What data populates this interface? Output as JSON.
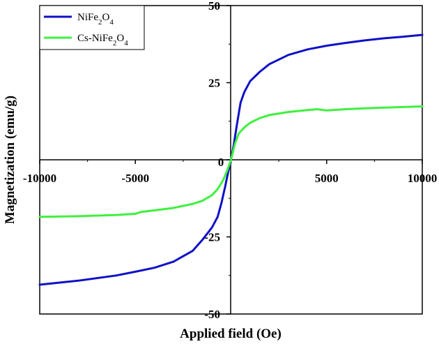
{
  "chart_data": {
    "type": "line",
    "xlabel": "Applied field (Oe)",
    "ylabel": "Magnetization (emu/g)",
    "xlim": [
      -10000,
      10000
    ],
    "ylim": [
      -50,
      50
    ],
    "x_ticks": [
      -10000,
      -5000,
      0,
      5000,
      10000
    ],
    "y_ticks": [
      -50,
      -25,
      0,
      25,
      50
    ],
    "x_tick_labels": [
      "-10000",
      "-5000",
      "0",
      "5000",
      "10000"
    ],
    "y_tick_labels": [
      "-50",
      "-25",
      "0",
      "25",
      "50"
    ],
    "grid": false,
    "legend_position": "top-left",
    "series": [
      {
        "name": "NiFe2O4",
        "name_base": "NiFe",
        "name_sub1": "2",
        "name_mid": "O",
        "name_sub2": "4",
        "color": "#1010c8",
        "x": [
          -10000,
          -8000,
          -6000,
          -5000,
          -4000,
          -3000,
          -2000,
          -1500,
          -1000,
          -700,
          -500,
          -300,
          -150,
          0,
          150,
          300,
          500,
          700,
          1000,
          1500,
          2000,
          3000,
          4000,
          5000,
          6000,
          7000,
          8000,
          9000,
          10000
        ],
        "y": [
          -40.5,
          -39.2,
          -37.5,
          -36.3,
          -35.0,
          -33.0,
          -29.5,
          -26.0,
          -22.0,
          -18.5,
          -14.0,
          -8.5,
          -4.0,
          0,
          5.0,
          11.0,
          18.5,
          22.0,
          25.5,
          28.5,
          31.0,
          34.0,
          35.8,
          37.0,
          37.9,
          38.7,
          39.4,
          39.9,
          40.5
        ]
      },
      {
        "name": "Cs-NiFe2O4",
        "name_base": "Cs-NiFe",
        "name_sub1": "2",
        "name_mid": "O",
        "name_sub2": "4",
        "color": "#3ff03f",
        "x": [
          -10000,
          -8000,
          -6000,
          -5000,
          -4700,
          -4000,
          -3000,
          -2000,
          -1500,
          -1000,
          -700,
          -400,
          -200,
          0,
          200,
          400,
          700,
          1000,
          1500,
          2000,
          3000,
          4000,
          4500,
          5000,
          6000,
          7000,
          8000,
          9000,
          10000
        ],
        "y": [
          -18.5,
          -18.3,
          -17.9,
          -17.5,
          -16.9,
          -16.4,
          -15.6,
          -14.3,
          -13.3,
          -11.5,
          -9.5,
          -6.5,
          -3.5,
          0,
          5.0,
          8.5,
          10.5,
          12.0,
          13.5,
          14.5,
          15.5,
          16.1,
          16.4,
          16.0,
          16.4,
          16.7,
          16.9,
          17.1,
          17.3
        ]
      }
    ]
  }
}
